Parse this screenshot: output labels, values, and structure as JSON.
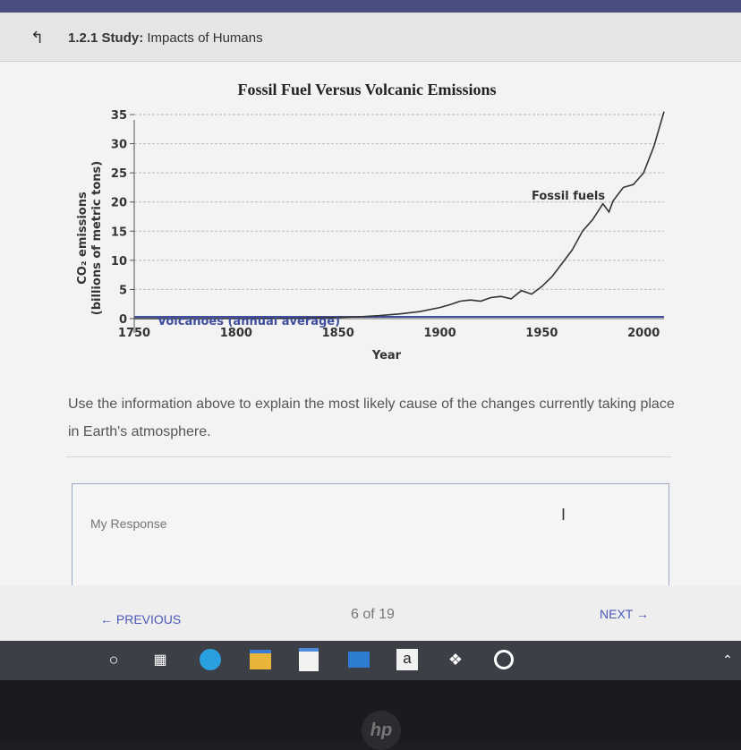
{
  "header": {
    "back_icon": "up-arrow-icon",
    "lesson": "1.2.1",
    "activity": "Study:",
    "topic": "Impacts of Humans"
  },
  "chart_data": {
    "type": "line",
    "title": "Fossil Fuel Versus Volcanic Emissions",
    "xlabel": "Year",
    "ylabel_line1": "CO₂ emissions",
    "ylabel_line2": "(billions of metric tons)",
    "xlim": [
      1750,
      2010
    ],
    "ylim": [
      0,
      35
    ],
    "x_ticks": [
      1750,
      1800,
      1850,
      1900,
      1950,
      2000
    ],
    "y_ticks": [
      0,
      5,
      10,
      15,
      20,
      25,
      30,
      35
    ],
    "grid": true,
    "series": [
      {
        "name": "Fossil fuels",
        "color": "#333333",
        "x": [
          1750,
          1800,
          1830,
          1850,
          1860,
          1870,
          1880,
          1890,
          1900,
          1905,
          1910,
          1915,
          1920,
          1925,
          1930,
          1935,
          1940,
          1945,
          1950,
          1955,
          1960,
          1965,
          1970,
          1975,
          1980,
          1983,
          1985,
          1990,
          1995,
          2000,
          2005,
          2010
        ],
        "y": [
          0,
          0.01,
          0.05,
          0.2,
          0.3,
          0.5,
          0.8,
          1.2,
          1.9,
          2.4,
          3.0,
          3.2,
          3.0,
          3.6,
          3.8,
          3.4,
          4.8,
          4.2,
          5.5,
          7.2,
          9.5,
          11.8,
          15.0,
          17.0,
          19.7,
          18.3,
          20.2,
          22.5,
          23.0,
          25.0,
          29.5,
          35.5
        ]
      },
      {
        "name": "Volcanoes (annual average)",
        "color": "#3f4f9e",
        "x": [
          1750,
          2010
        ],
        "y": [
          0.3,
          0.3
        ]
      }
    ]
  },
  "question": "Use the information above to explain the most likely cause of the changes currently taking place in Earth's atmosphere.",
  "response": {
    "placeholder": "My Response",
    "cursor": "I"
  },
  "footer": {
    "previous": "PREVIOUS",
    "pager": "6 of 19",
    "next": "NEXT"
  },
  "taskbar": {
    "icons": [
      "start-circle-icon",
      "task-view-icon",
      "edge-browser-icon",
      "file-explorer-icon",
      "store-icon",
      "mail-icon",
      "amazon-icon",
      "dropbox-icon",
      "app-icon",
      "chevron-up-icon"
    ]
  },
  "colors": {
    "accent": "#4a58b8",
    "header_bg": "#e6e5e6",
    "taskbar_bg": "#3c3f46"
  }
}
